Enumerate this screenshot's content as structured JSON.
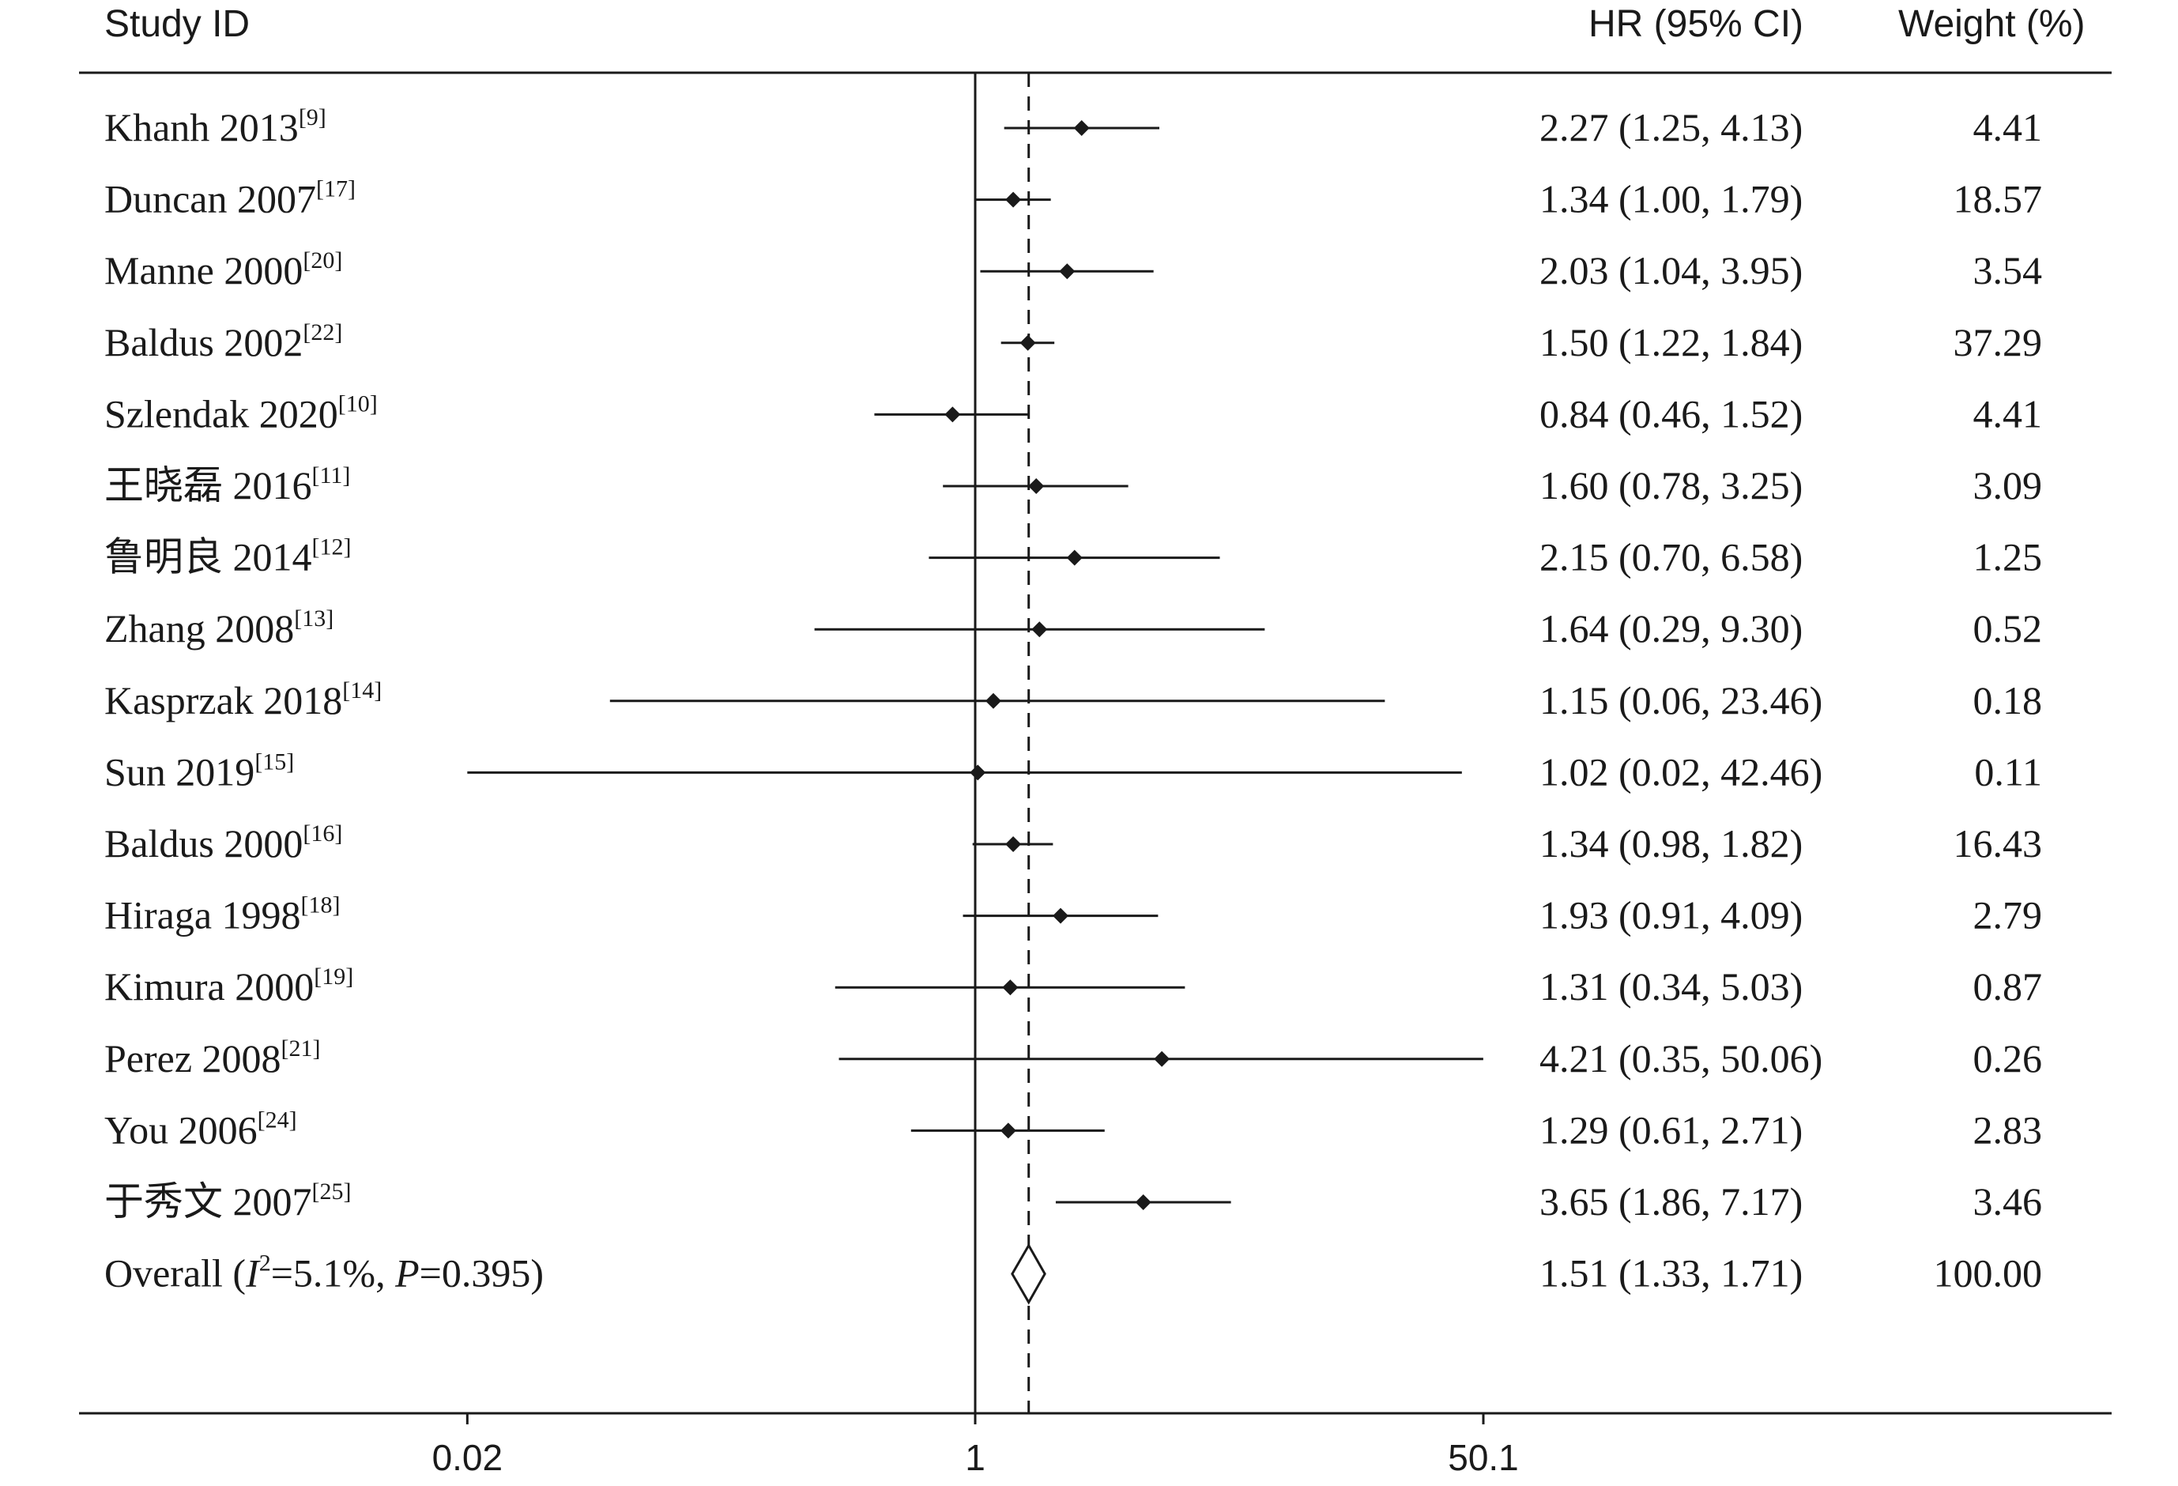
{
  "chart_data": {
    "type": "forest",
    "columns": {
      "study": "Study ID",
      "effect": "HR (95% CI)",
      "weight": "Weight (%)"
    },
    "scale": "log",
    "xlim": [
      0.02,
      50.1
    ],
    "ticks": [
      {
        "value": 0.02,
        "label": "0.02"
      },
      {
        "value": 1,
        "label": "1"
      },
      {
        "value": 50.1,
        "label": "50.1"
      }
    ],
    "null_line": 1,
    "pooled_line": 1.51,
    "colors": {
      "ink": "#1a1a1a",
      "background": "#ffffff"
    },
    "studies": [
      {
        "name": "Khanh 2013",
        "ref": "[9]",
        "hr": 2.27,
        "lo": 1.25,
        "hi": 4.13,
        "ci_text": "2.27 (1.25, 4.13)",
        "weight": 4.41,
        "weight_text": "4.41"
      },
      {
        "name": "Duncan 2007",
        "ref": "[17]",
        "hr": 1.34,
        "lo": 1.0,
        "hi": 1.79,
        "ci_text": "1.34 (1.00, 1.79)",
        "weight": 18.57,
        "weight_text": "18.57"
      },
      {
        "name": "Manne 2000",
        "ref": "[20]",
        "hr": 2.03,
        "lo": 1.04,
        "hi": 3.95,
        "ci_text": "2.03 (1.04, 3.95)",
        "weight": 3.54,
        "weight_text": "3.54"
      },
      {
        "name": "Baldus 2002",
        "ref": "[22]",
        "hr": 1.5,
        "lo": 1.22,
        "hi": 1.84,
        "ci_text": "1.50 (1.22, 1.84)",
        "weight": 37.29,
        "weight_text": "37.29"
      },
      {
        "name": "Szlendak 2020",
        "ref": "[10]",
        "hr": 0.84,
        "lo": 0.46,
        "hi": 1.52,
        "ci_text": "0.84 (0.46, 1.52)",
        "weight": 4.41,
        "weight_text": "4.41"
      },
      {
        "name": "王晓磊 2016",
        "ref": "[11]",
        "hr": 1.6,
        "lo": 0.78,
        "hi": 3.25,
        "ci_text": "1.60 (0.78, 3.25)",
        "weight": 3.09,
        "weight_text": "3.09"
      },
      {
        "name": "鲁明良 2014",
        "ref": "[12]",
        "hr": 2.15,
        "lo": 0.7,
        "hi": 6.58,
        "ci_text": "2.15 (0.70, 6.58)",
        "weight": 1.25,
        "weight_text": "1.25"
      },
      {
        "name": "Zhang 2008",
        "ref": "[13]",
        "hr": 1.64,
        "lo": 0.29,
        "hi": 9.3,
        "ci_text": "1.64 (0.29, 9.30)",
        "weight": 0.52,
        "weight_text": "0.52"
      },
      {
        "name": "Kasprzak 2018",
        "ref": "[14]",
        "hr": 1.15,
        "lo": 0.06,
        "hi": 23.46,
        "ci_text": "1.15 (0.06, 23.46)",
        "weight": 0.18,
        "weight_text": "0.18"
      },
      {
        "name": "Sun 2019",
        "ref": "[15]",
        "hr": 1.02,
        "lo": 0.02,
        "hi": 42.46,
        "ci_text": "1.02 (0.02, 42.46)",
        "weight": 0.11,
        "weight_text": "0.11"
      },
      {
        "name": "Baldus 2000",
        "ref": "[16]",
        "hr": 1.34,
        "lo": 0.98,
        "hi": 1.82,
        "ci_text": "1.34 (0.98, 1.82)",
        "weight": 16.43,
        "weight_text": "16.43"
      },
      {
        "name": "Hiraga 1998",
        "ref": "[18]",
        "hr": 1.93,
        "lo": 0.91,
        "hi": 4.09,
        "ci_text": "1.93 (0.91, 4.09)",
        "weight": 2.79,
        "weight_text": "2.79"
      },
      {
        "name": "Kimura 2000",
        "ref": "[19]",
        "hr": 1.31,
        "lo": 0.34,
        "hi": 5.03,
        "ci_text": "1.31 (0.34, 5.03)",
        "weight": 0.87,
        "weight_text": "0.87"
      },
      {
        "name": "Perez 2008",
        "ref": "[21]",
        "hr": 4.21,
        "lo": 0.35,
        "hi": 50.06,
        "ci_text": "4.21 (0.35, 50.06)",
        "weight": 0.26,
        "weight_text": "0.26"
      },
      {
        "name": "You 2006",
        "ref": "[24]",
        "hr": 1.29,
        "lo": 0.61,
        "hi": 2.71,
        "ci_text": "1.29 (0.61, 2.71)",
        "weight": 2.83,
        "weight_text": "2.83"
      },
      {
        "name": "于秀文 2007",
        "ref": "[25]",
        "hr": 3.65,
        "lo": 1.86,
        "hi": 7.17,
        "ci_text": "3.65 (1.86, 7.17)",
        "weight": 3.46,
        "weight_text": "3.46"
      }
    ],
    "overall": {
      "label_prefix": "Overall  (",
      "i2_symbol": "I",
      "i2_sup": "2",
      "i2_value": "=5.1%, ",
      "p_symbol": "P",
      "p_value": "=0.395)",
      "hr": 1.51,
      "lo": 1.33,
      "hi": 1.71,
      "ci_text": "1.51 (1.33, 1.71)",
      "weight": 100.0,
      "weight_text": "100.00"
    }
  }
}
